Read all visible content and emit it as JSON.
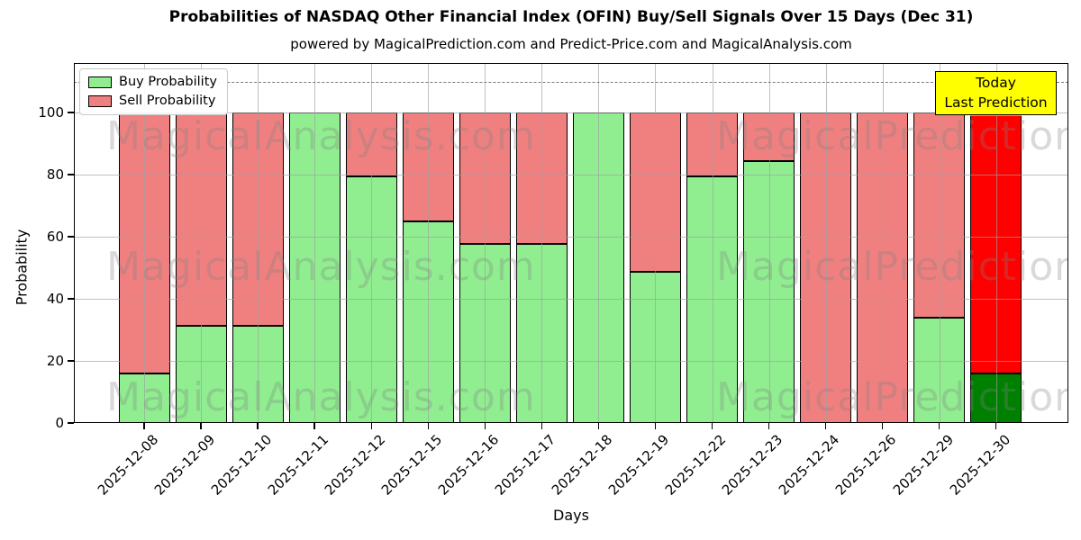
{
  "title": "Probabilities of NASDAQ Other Financial Index (OFIN) Buy/Sell Signals Over 15 Days (Dec 31)",
  "subtitle": "powered by MagicalPrediction.com and Predict-Price.com and MagicalAnalysis.com",
  "axes": {
    "xlabel": "Days",
    "ylabel": "Probability"
  },
  "legend": {
    "items": [
      {
        "label": "Buy Probability",
        "color": "#90EE90"
      },
      {
        "label": "Sell Probability",
        "color": "#F08080"
      }
    ]
  },
  "annotation": {
    "line1": "Today",
    "line2": "Last Prediction",
    "bg_color": "#FFFF00"
  },
  "watermarks": {
    "left": "MagicalAnalysis.com",
    "right": "MagicalPrediction.com"
  },
  "chart_data": {
    "type": "bar",
    "stacked": true,
    "title": "Probabilities of NASDAQ Other Financial Index (OFIN) Buy/Sell Signals Over 15 Days (Dec 31)",
    "xlabel": "Days",
    "ylabel": "Probability",
    "ylim": [
      0,
      116
    ],
    "yticks": [
      0,
      20,
      40,
      60,
      80,
      100
    ],
    "grid": true,
    "gridline_color": "#b0b0b0",
    "legend_position": "upper left",
    "threshold_dashed_line_y": 110,
    "categories": [
      "2025-12-08",
      "2025-12-09",
      "2025-12-10",
      "2025-12-11",
      "2025-12-12",
      "2025-12-15",
      "2025-12-16",
      "2025-12-17",
      "2025-12-18",
      "2025-12-19",
      "2025-12-22",
      "2025-12-23",
      "2025-12-24",
      "2025-12-26",
      "2025-12-29",
      "2025-12-30"
    ],
    "series": [
      {
        "name": "Buy Probability",
        "color": "#90EE90",
        "values": [
          16,
          31.3,
          31.3,
          100,
          79.5,
          65,
          57.8,
          57.8,
          100,
          48.8,
          79.5,
          84.4,
          0,
          0,
          33.8,
          16
        ]
      },
      {
        "name": "Sell Probability",
        "color": "#F08080",
        "values": [
          84,
          68.7,
          68.7,
          0,
          20.5,
          35,
          42.2,
          42.2,
          0,
          51.2,
          20.5,
          15.6,
          100,
          100,
          66.2,
          84
        ]
      }
    ],
    "today_bar": {
      "index": 15,
      "buy_color": "#008000",
      "sell_color": "#FF0000",
      "top_edge_color": "#FFA500"
    }
  }
}
